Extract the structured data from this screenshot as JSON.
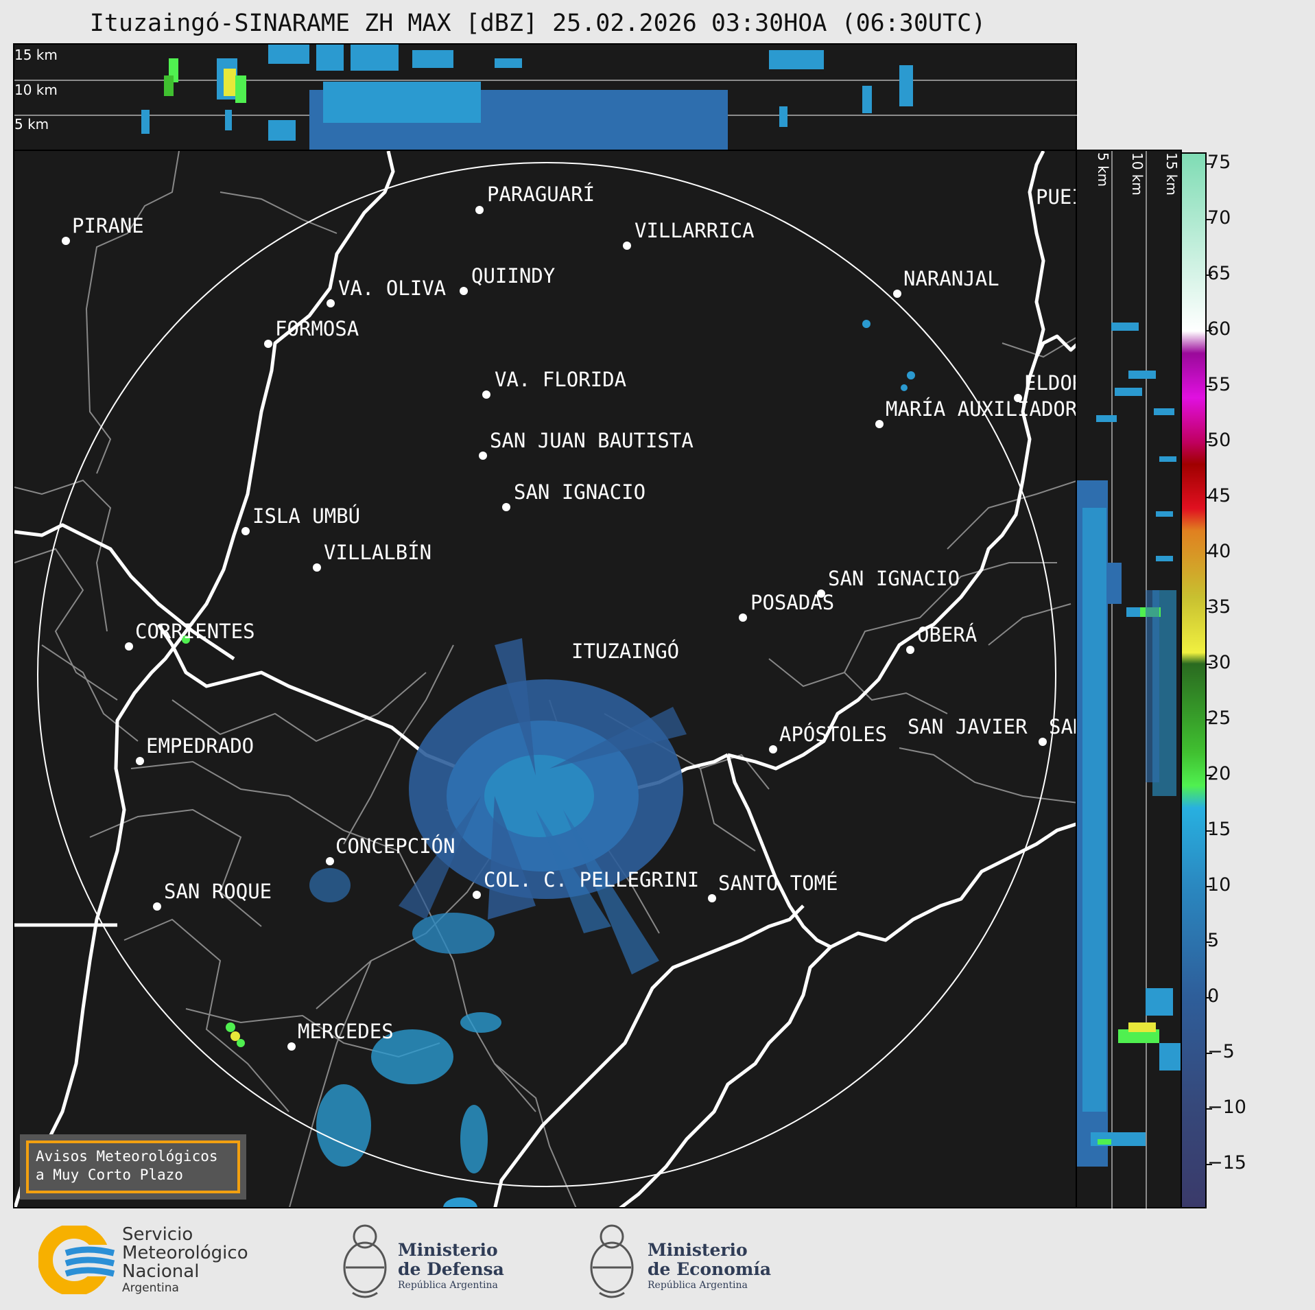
{
  "title": "Ituzaingó-SINARAME ZH MAX [dBZ] 25.02.2026 03:30HOA (06:30UTC)",
  "colors": {
    "background": "#1a1a1a",
    "frame": "#e8e8e8",
    "echo_weak": "#3f78b4",
    "echo_light": "#2b9ad0",
    "echo_green": "#4ce03a",
    "echo_yellow": "#e8e83a",
    "range_ring": "#ffffff",
    "river": "#ffffff",
    "border": "#888888",
    "warning_border": "#f2a010"
  },
  "altitude_labels_top": [
    "15 km",
    "10 km",
    "5 km"
  ],
  "altitude_labels_side": [
    "5 km",
    "10 km",
    "15 km"
  ],
  "colorbar": {
    "ticks": [
      "75",
      "70",
      "65",
      "60",
      "55",
      "50",
      "45",
      "40",
      "35",
      "30",
      "25",
      "20",
      "15",
      "10",
      "5",
      "0",
      "−5",
      "−10",
      "−15"
    ],
    "stops": [
      {
        "value": 76,
        "color": "#7fdcb4"
      },
      {
        "value": 60,
        "color": "#ffffff"
      },
      {
        "value": 58,
        "color": "#9a0a9a"
      },
      {
        "value": 54,
        "color": "#e010e0"
      },
      {
        "value": 50,
        "color": "#c00060"
      },
      {
        "value": 48,
        "color": "#a00000"
      },
      {
        "value": 44,
        "color": "#e01020"
      },
      {
        "value": 42,
        "color": "#e08020"
      },
      {
        "value": 36,
        "color": "#c8c030"
      },
      {
        "value": 31,
        "color": "#f0f040"
      },
      {
        "value": 30,
        "color": "#2a6a20"
      },
      {
        "value": 22,
        "color": "#40c030"
      },
      {
        "value": 19,
        "color": "#50f050"
      },
      {
        "value": 17,
        "color": "#28b0e0"
      },
      {
        "value": 10,
        "color": "#2a88c0"
      },
      {
        "value": 0,
        "color": "#2e5e9a"
      },
      {
        "value": -10,
        "color": "#36487a"
      },
      {
        "value": -19,
        "color": "#3a3a6a"
      }
    ],
    "min": -19,
    "max": 76
  },
  "radar": "ITUZAINGÓ",
  "cities": [
    {
      "name": "PIRANE"
    },
    {
      "name": "PARAGUARÍ"
    },
    {
      "name": "VILLARRICA"
    },
    {
      "name": "VA. OLIVA"
    },
    {
      "name": "QUIINDY"
    },
    {
      "name": "NARANJAL"
    },
    {
      "name": "FORMOSA"
    },
    {
      "name": "VA. FLORIDA"
    },
    {
      "name": "ELDOR"
    },
    {
      "name": "MARÍA AUXILIADORA"
    },
    {
      "name": "SAN JUAN BAUTISTA"
    },
    {
      "name": "SAN IGNACIO"
    },
    {
      "name": "ISLA UMBÚ"
    },
    {
      "name": "VILLALBÍN"
    },
    {
      "name": "SAN IGNACIO"
    },
    {
      "name": "POSADAS"
    },
    {
      "name": "CORRIENTES"
    },
    {
      "name": "OBERÁ"
    },
    {
      "name": "EMPEDRADO"
    },
    {
      "name": "APÓSTOLES"
    },
    {
      "name": "SAN JAVIER"
    },
    {
      "name": "SAN"
    },
    {
      "name": "CONCEPCIÓN"
    },
    {
      "name": "COL. C. PELLEGRINI"
    },
    {
      "name": "SANTO TOMÉ"
    },
    {
      "name": "SAN ROQUE"
    },
    {
      "name": "MERCEDES"
    },
    {
      "name": "PUEI"
    }
  ],
  "warning": {
    "line1": "Avisos Meteorológicos",
    "line2": "a Muy Corto Plazo"
  },
  "footer": {
    "smn": {
      "line1": "Servicio",
      "line2": "Meteorológico",
      "line3": "Nacional",
      "line4": "Argentina"
    },
    "defensa": {
      "line1": "Ministerio",
      "line2": "de Defensa",
      "line3": "República Argentina"
    },
    "economia": {
      "line1": "Ministerio",
      "line2": "de Economía",
      "line3": "República Argentina"
    }
  }
}
